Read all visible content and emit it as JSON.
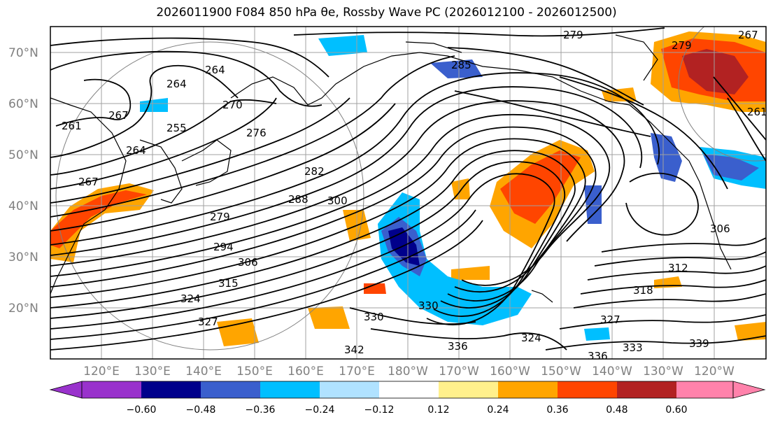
{
  "title": "2026011900 F084 850 hPa θe, Rossby Wave PC (2026012100 - 2026012500)",
  "lat_labels": [
    "70°N",
    "60°N",
    "50°N",
    "40°N",
    "30°N",
    "20°N"
  ],
  "lon_labels": [
    "120°E",
    "130°E",
    "140°E",
    "150°E",
    "160°E",
    "170°E",
    "180°W",
    "170°W",
    "160°W",
    "150°W",
    "140°W",
    "130°W",
    "120°W"
  ],
  "colorbar": {
    "labels": [
      "−0.60",
      "−0.48",
      "−0.36",
      "−0.24",
      "−0.12",
      "0.12",
      "0.24",
      "0.36",
      "0.48",
      "0.60"
    ],
    "colors": [
      "#9932cc",
      "#00008b",
      "#3a5fcd",
      "#00bfff",
      "#b0e2ff",
      "#ffffff",
      "#fff08c",
      "#ffa500",
      "#ff4500",
      "#b22222",
      "#ff82ab"
    ]
  },
  "contour_labels": [
    "279",
    "285",
    "264",
    "264",
    "270",
    "276",
    "261",
    "267",
    "255",
    "264",
    "267",
    "282",
    "288",
    "279",
    "300",
    "294",
    "306",
    "315",
    "324",
    "330",
    "336",
    "342",
    "327",
    "318",
    "312",
    "306",
    "327",
    "333",
    "336",
    "339",
    "324",
    "330",
    "267",
    "261",
    "279"
  ],
  "chart_data": {
    "type": "heatmap",
    "title": "2026011900 F084 850 hPa θe, Rossby Wave PC (2026012100 - 2026012500)",
    "variable_contours": "850 hPa θe (K)",
    "variable_fill": "Rossby Wave PC",
    "lat_range": [
      10,
      75
    ],
    "lon_range_deg_east": [
      110,
      250
    ],
    "fill_levels": [
      -0.6,
      -0.48,
      -0.36,
      -0.24,
      -0.12,
      0.12,
      0.24,
      0.36,
      0.48,
      0.6
    ],
    "colorbar_extends": "both",
    "grid": true,
    "contour_values_labeled": [
      261,
      264,
      267,
      270,
      276,
      279,
      282,
      285,
      288,
      294,
      300,
      306,
      312,
      315,
      318,
      324,
      327,
      330,
      333,
      336,
      339,
      342
    ]
  }
}
